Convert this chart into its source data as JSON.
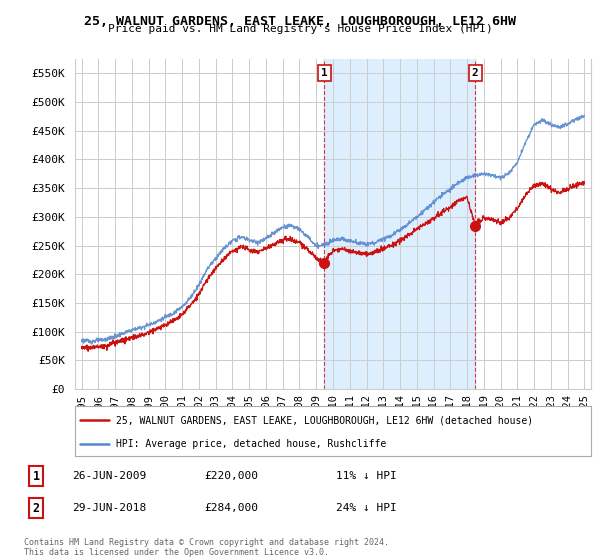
{
  "title1": "25, WALNUT GARDENS, EAST LEAKE, LOUGHBOROUGH, LE12 6HW",
  "title2": "Price paid vs. HM Land Registry's House Price Index (HPI)",
  "ylabel_ticks": [
    "£0",
    "£50K",
    "£100K",
    "£150K",
    "£200K",
    "£250K",
    "£300K",
    "£350K",
    "£400K",
    "£450K",
    "£500K",
    "£550K"
  ],
  "ytick_values": [
    0,
    50000,
    100000,
    150000,
    200000,
    250000,
    300000,
    350000,
    400000,
    450000,
    500000,
    550000
  ],
  "ylim": [
    0,
    575000
  ],
  "hpi_color": "#5588cc",
  "price_color": "#cc1111",
  "bg_color": "#ffffff",
  "shade_color": "#ddeeff",
  "grid_color": "#cccccc",
  "legend_line1": "25, WALNUT GARDENS, EAST LEAKE, LOUGHBOROUGH, LE12 6HW (detached house)",
  "legend_line2": "HPI: Average price, detached house, Rushcliffe",
  "sale1_date": "26-JUN-2009",
  "sale1_price": 220000,
  "sale1_label": "£220,000",
  "sale1_pct": "11% ↓ HPI",
  "sale2_date": "29-JUN-2018",
  "sale2_price": 284000,
  "sale2_label": "£284,000",
  "sale2_pct": "24% ↓ HPI",
  "footnote": "Contains HM Land Registry data © Crown copyright and database right 2024.\nThis data is licensed under the Open Government Licence v3.0.",
  "sale1_x": 2009.49,
  "sale2_x": 2018.49,
  "marker1_num": "1",
  "marker2_num": "2",
  "hpi_keypoints": [
    [
      1995.0,
      85000
    ],
    [
      1995.5,
      83000
    ],
    [
      1996.0,
      85000
    ],
    [
      1996.5,
      87000
    ],
    [
      1997.0,
      92000
    ],
    [
      1997.5,
      97000
    ],
    [
      1998.0,
      103000
    ],
    [
      1998.5,
      107000
    ],
    [
      1999.0,
      112000
    ],
    [
      1999.5,
      118000
    ],
    [
      2000.0,
      125000
    ],
    [
      2000.5,
      133000
    ],
    [
      2001.0,
      143000
    ],
    [
      2001.5,
      160000
    ],
    [
      2002.0,
      182000
    ],
    [
      2002.5,
      210000
    ],
    [
      2003.0,
      228000
    ],
    [
      2003.5,
      245000
    ],
    [
      2004.0,
      258000
    ],
    [
      2004.5,
      265000
    ],
    [
      2005.0,
      260000
    ],
    [
      2005.5,
      255000
    ],
    [
      2006.0,
      262000
    ],
    [
      2006.5,
      272000
    ],
    [
      2007.0,
      282000
    ],
    [
      2007.5,
      285000
    ],
    [
      2008.0,
      278000
    ],
    [
      2008.5,
      265000
    ],
    [
      2009.0,
      248000
    ],
    [
      2009.5,
      252000
    ],
    [
      2010.0,
      260000
    ],
    [
      2010.5,
      262000
    ],
    [
      2011.0,
      258000
    ],
    [
      2011.5,
      255000
    ],
    [
      2012.0,
      252000
    ],
    [
      2012.5,
      255000
    ],
    [
      2013.0,
      262000
    ],
    [
      2013.5,
      268000
    ],
    [
      2014.0,
      278000
    ],
    [
      2014.5,
      288000
    ],
    [
      2015.0,
      300000
    ],
    [
      2015.5,
      312000
    ],
    [
      2016.0,
      325000
    ],
    [
      2016.5,
      338000
    ],
    [
      2017.0,
      348000
    ],
    [
      2017.5,
      360000
    ],
    [
      2018.0,
      368000
    ],
    [
      2018.5,
      372000
    ],
    [
      2019.0,
      375000
    ],
    [
      2019.5,
      372000
    ],
    [
      2020.0,
      368000
    ],
    [
      2020.5,
      375000
    ],
    [
      2021.0,
      395000
    ],
    [
      2021.5,
      430000
    ],
    [
      2022.0,
      460000
    ],
    [
      2022.5,
      468000
    ],
    [
      2023.0,
      460000
    ],
    [
      2023.5,
      455000
    ],
    [
      2024.0,
      462000
    ],
    [
      2024.5,
      470000
    ],
    [
      2025.0,
      475000
    ]
  ],
  "price_keypoints": [
    [
      1995.0,
      74000
    ],
    [
      1995.5,
      72000
    ],
    [
      1996.0,
      74000
    ],
    [
      1996.5,
      76000
    ],
    [
      1997.0,
      81000
    ],
    [
      1997.5,
      86000
    ],
    [
      1998.0,
      90000
    ],
    [
      1998.5,
      94000
    ],
    [
      1999.0,
      99000
    ],
    [
      1999.5,
      105000
    ],
    [
      2000.0,
      112000
    ],
    [
      2000.5,
      120000
    ],
    [
      2001.0,
      130000
    ],
    [
      2001.5,
      146000
    ],
    [
      2002.0,
      165000
    ],
    [
      2002.5,
      192000
    ],
    [
      2003.0,
      210000
    ],
    [
      2003.5,
      228000
    ],
    [
      2004.0,
      240000
    ],
    [
      2004.5,
      248000
    ],
    [
      2005.0,
      242000
    ],
    [
      2005.5,
      238000
    ],
    [
      2006.0,
      245000
    ],
    [
      2006.5,
      252000
    ],
    [
      2007.0,
      260000
    ],
    [
      2007.5,
      262000
    ],
    [
      2008.0,
      255000
    ],
    [
      2008.5,
      242000
    ],
    [
      2009.0,
      228000
    ],
    [
      2009.49,
      220000
    ],
    [
      2009.6,
      228000
    ],
    [
      2010.0,
      240000
    ],
    [
      2010.5,
      245000
    ],
    [
      2011.0,
      240000
    ],
    [
      2011.5,
      238000
    ],
    [
      2012.0,
      235000
    ],
    [
      2012.5,
      238000
    ],
    [
      2013.0,
      245000
    ],
    [
      2013.5,
      250000
    ],
    [
      2014.0,
      258000
    ],
    [
      2014.5,
      268000
    ],
    [
      2015.0,
      278000
    ],
    [
      2015.5,
      288000
    ],
    [
      2016.0,
      298000
    ],
    [
      2016.5,
      308000
    ],
    [
      2017.0,
      315000
    ],
    [
      2017.5,
      328000
    ],
    [
      2018.0,
      335000
    ],
    [
      2018.49,
      284000
    ],
    [
      2018.6,
      290000
    ],
    [
      2019.0,
      298000
    ],
    [
      2019.5,
      295000
    ],
    [
      2020.0,
      290000
    ],
    [
      2020.5,
      298000
    ],
    [
      2021.0,
      315000
    ],
    [
      2021.5,
      338000
    ],
    [
      2022.0,
      355000
    ],
    [
      2022.5,
      358000
    ],
    [
      2023.0,
      348000
    ],
    [
      2023.5,
      342000
    ],
    [
      2024.0,
      348000
    ],
    [
      2024.5,
      355000
    ],
    [
      2025.0,
      358000
    ]
  ]
}
